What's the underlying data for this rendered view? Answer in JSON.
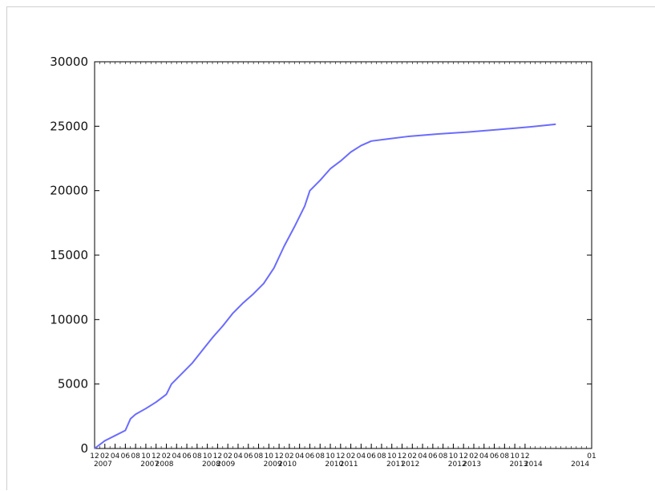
{
  "chart_data": {
    "type": "line",
    "title": "",
    "xlabel": "",
    "ylabel": "",
    "ylim": [
      0,
      30000
    ],
    "y_ticks": [
      "0",
      "5000",
      "10000",
      "15000",
      "20000",
      "25000",
      "30000"
    ],
    "grid": false,
    "legend": "none",
    "x_range": [
      "2006-12",
      "2015-01"
    ],
    "x_month_ticks": [
      "12",
      "02",
      "04",
      "06",
      "08",
      "10",
      "12",
      "02",
      "04",
      "06",
      "08",
      "10",
      "12",
      "02",
      "04",
      "06",
      "08",
      "10",
      "12",
      "02",
      "04",
      "06",
      "08",
      "10",
      "12",
      "02",
      "04",
      "06",
      "08",
      "10",
      "12",
      "02",
      "04",
      "06",
      "08",
      "10",
      "12",
      "02",
      "04",
      "06",
      "08",
      "10",
      "12",
      "01"
    ],
    "x_year_labels": [
      "2007",
      "2007",
      "2008",
      "2008",
      "2009",
      "2009",
      "2010",
      "2010",
      "2011",
      "2011",
      "2012",
      "2012",
      "2013",
      "2013",
      "2014",
      "2014"
    ],
    "series": [
      {
        "color": "#6b6bff",
        "points": [
          [
            "2006-12",
            0
          ],
          [
            "2007-01",
            300
          ],
          [
            "2007-02",
            600
          ],
          [
            "2007-04",
            1000
          ],
          [
            "2007-06",
            1400
          ],
          [
            "2007-07",
            2300
          ],
          [
            "2007-08",
            2650
          ],
          [
            "2007-10",
            3100
          ],
          [
            "2007-12",
            3600
          ],
          [
            "2008-02",
            4200
          ],
          [
            "2008-03",
            5000
          ],
          [
            "2008-05",
            5800
          ],
          [
            "2008-07",
            6600
          ],
          [
            "2008-09",
            7600
          ],
          [
            "2008-11",
            8600
          ],
          [
            "2009-01",
            9500
          ],
          [
            "2009-03",
            10500
          ],
          [
            "2009-05",
            11300
          ],
          [
            "2009-07",
            12000
          ],
          [
            "2009-09",
            12800
          ],
          [
            "2009-11",
            14000
          ],
          [
            "2010-01",
            15700
          ],
          [
            "2010-03",
            17200
          ],
          [
            "2010-05",
            18800
          ],
          [
            "2010-06",
            20000
          ],
          [
            "2010-08",
            20800
          ],
          [
            "2010-10",
            21700
          ],
          [
            "2010-12",
            22300
          ],
          [
            "2011-02",
            23000
          ],
          [
            "2011-04",
            23500
          ],
          [
            "2011-06",
            23850
          ],
          [
            "2011-09",
            24000
          ],
          [
            "2012-01",
            24200
          ],
          [
            "2012-07",
            24400
          ],
          [
            "2013-01",
            24550
          ],
          [
            "2013-07",
            24750
          ],
          [
            "2014-01",
            24950
          ],
          [
            "2014-06",
            25150
          ]
        ]
      }
    ]
  }
}
